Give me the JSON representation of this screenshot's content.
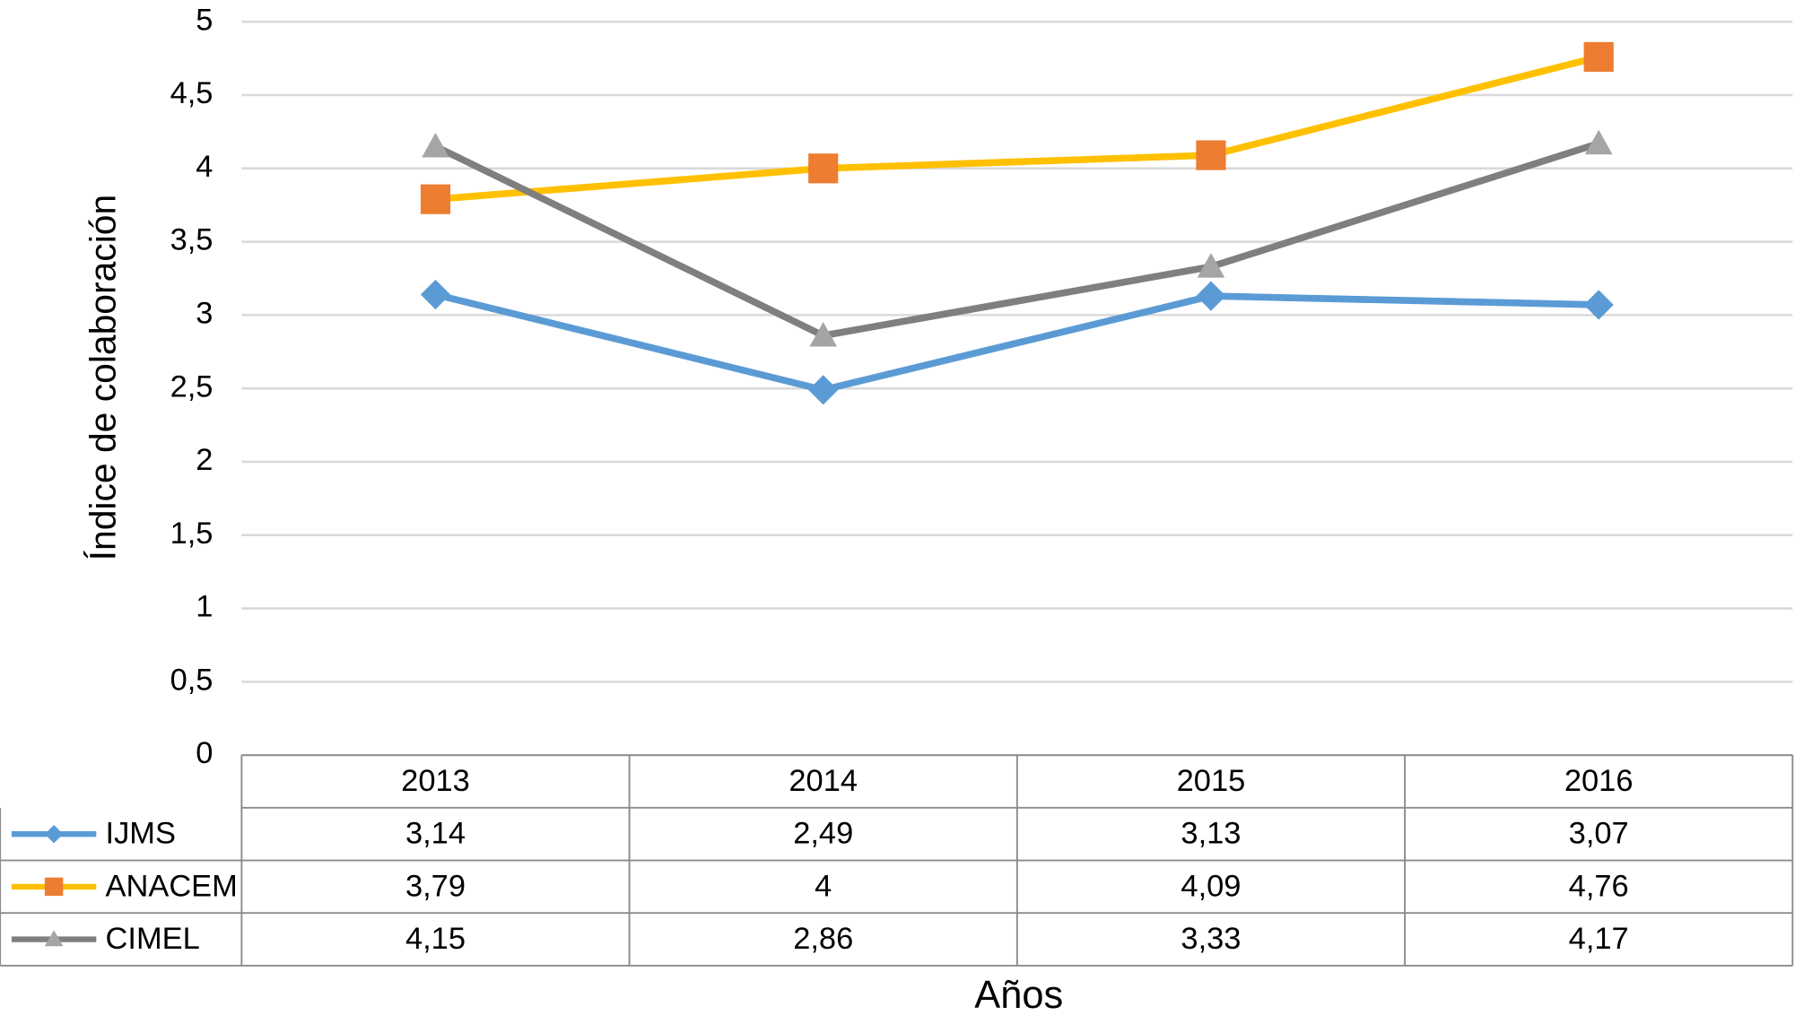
{
  "chart_data": {
    "type": "line",
    "y_label": "Índice de colaboración",
    "x_label": "Años",
    "categories": [
      "2013",
      "2014",
      "2015",
      "2016"
    ],
    "series": [
      {
        "name": "IJMS",
        "color": "#5b9bd5",
        "marker": "diamond",
        "marker_color": "#5b9bd5",
        "values": [
          3.14,
          2.49,
          3.13,
          3.07
        ],
        "value_labels": [
          "3,14",
          "2,49",
          "3,13",
          "3,07"
        ]
      },
      {
        "name": "ANACEM",
        "color": "#ffc000",
        "marker": "square",
        "marker_color": "#ed7d31",
        "values": [
          3.79,
          4,
          4.09,
          4.76
        ],
        "value_labels": [
          "3,79",
          "4",
          "4,09",
          "4,76"
        ]
      },
      {
        "name": "CIMEL",
        "color": "#7f7f7f",
        "marker": "triangle",
        "marker_color": "#a5a5a5",
        "values": [
          4.15,
          2.86,
          3.33,
          4.17
        ],
        "value_labels": [
          "4,15",
          "2,86",
          "3,33",
          "4,17"
        ]
      }
    ],
    "ylim": [
      0,
      5
    ],
    "yticks": [
      0,
      {
        "value": 0.5,
        "label": "0,5"
      },
      1,
      {
        "value": 1.5,
        "label": "1,5"
      },
      2,
      {
        "value": 2.5,
        "label": "2,5"
      },
      3,
      {
        "value": 3.5,
        "label": "3,5"
      },
      4,
      {
        "value": 4.5,
        "label": "4,5"
      },
      5
    ],
    "grid": true,
    "data_table": true
  }
}
